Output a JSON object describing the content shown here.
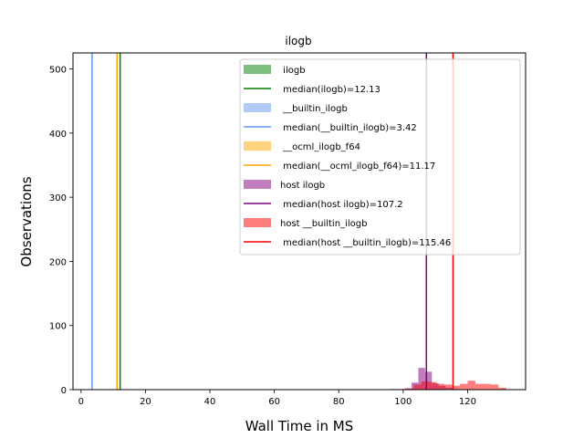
{
  "chart_data": {
    "type": "histogram",
    "title": "ilogb",
    "xlabel": "Wall Time in MS",
    "ylabel": "Observations",
    "xlim": [
      -2.5,
      138
    ],
    "ylim": [
      0,
      525
    ],
    "xticks": [
      0,
      20,
      40,
      60,
      80,
      100,
      120
    ],
    "yticks": [
      0,
      100,
      200,
      300,
      400,
      500
    ],
    "grid": false,
    "legend_position": "top-right",
    "series": [
      {
        "name": " ilogb",
        "kind": "hist",
        "color": "#008000",
        "opacity": 0.5,
        "bins": []
      },
      {
        "name": " median(ilogb)=12.13",
        "kind": "vline",
        "color": "#008000",
        "x": 12.13
      },
      {
        "name": " __builtin_ilogb",
        "kind": "hist",
        "color": "#6495ed",
        "opacity": 0.5,
        "bins": []
      },
      {
        "name": " median(__builtin_ilogb)=3.42",
        "kind": "vline",
        "color": "#6495ed",
        "x": 3.42
      },
      {
        "name": " __ocml_ilogb_f64",
        "kind": "hist",
        "color": "#ffa500",
        "opacity": 0.5,
        "bins": []
      },
      {
        "name": " median(__ocml_ilogb_f64)=11.17",
        "kind": "vline",
        "color": "#ffa500",
        "x": 11.17
      },
      {
        "name": "host ilogb",
        "kind": "hist",
        "color": "#800080",
        "opacity": 0.5,
        "bins": [
          {
            "x0": 100.5,
            "x1": 102.6,
            "count": 2
          },
          {
            "x0": 102.6,
            "x1": 104.7,
            "count": 11
          },
          {
            "x0": 104.7,
            "x1": 106.8,
            "count": 34
          },
          {
            "x0": 106.8,
            "x1": 108.9,
            "count": 28
          },
          {
            "x0": 108.9,
            "x1": 111.0,
            "count": 10
          },
          {
            "x0": 111.0,
            "x1": 113.1,
            "count": 6
          },
          {
            "x0": 113.1,
            "x1": 115.2,
            "count": 3
          },
          {
            "x0": 115.2,
            "x1": 117.3,
            "count": 1
          }
        ]
      },
      {
        "name": " median(host ilogb)=107.2",
        "kind": "vline",
        "color": "#800080",
        "x": 107.2
      },
      {
        "name": "host __builtin_ilogb",
        "kind": "hist",
        "color": "#ff0000",
        "opacity": 0.5,
        "bins": [
          {
            "x0": 96.0,
            "x1": 98.4,
            "count": 1
          },
          {
            "x0": 98.4,
            "x1": 100.8,
            "count": 1
          },
          {
            "x0": 100.8,
            "x1": 103.2,
            "count": 2
          },
          {
            "x0": 103.2,
            "x1": 105.6,
            "count": 8
          },
          {
            "x0": 105.6,
            "x1": 108.0,
            "count": 13
          },
          {
            "x0": 108.0,
            "x1": 110.4,
            "count": 12
          },
          {
            "x0": 110.4,
            "x1": 112.8,
            "count": 9
          },
          {
            "x0": 112.8,
            "x1": 115.2,
            "count": 8
          },
          {
            "x0": 115.2,
            "x1": 117.6,
            "count": 6
          },
          {
            "x0": 117.6,
            "x1": 120.0,
            "count": 9
          },
          {
            "x0": 120.0,
            "x1": 122.4,
            "count": 14
          },
          {
            "x0": 122.4,
            "x1": 124.8,
            "count": 9
          },
          {
            "x0": 124.8,
            "x1": 127.2,
            "count": 9
          },
          {
            "x0": 127.2,
            "x1": 129.6,
            "count": 8
          },
          {
            "x0": 129.6,
            "x1": 132.0,
            "count": 3
          }
        ]
      },
      {
        "name": " median(host __builtin_ilogb)=115.46",
        "kind": "vline",
        "color": "#ff0000",
        "x": 115.46
      }
    ]
  }
}
